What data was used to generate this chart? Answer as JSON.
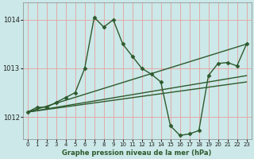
{
  "title": "Graphe pression niveau de la mer (hPa)",
  "bg_color": "#cce8e8",
  "plot_bg_color": "#cce8e8",
  "grid_color": "#e8a0a0",
  "line_color": "#2d5a2d",
  "marker_color": "#2d5a2d",
  "ylim": [
    1011.55,
    1014.35
  ],
  "yticks": [
    1012,
    1013,
    1014
  ],
  "xlim": [
    -0.5,
    23.5
  ],
  "xticks": [
    0,
    1,
    2,
    3,
    4,
    5,
    6,
    7,
    8,
    9,
    10,
    11,
    12,
    13,
    14,
    15,
    16,
    17,
    18,
    19,
    20,
    21,
    22,
    23
  ],
  "series": [
    {
      "x": [
        0,
        1,
        2,
        3,
        4,
        5,
        6,
        7,
        8,
        9,
        10,
        11,
        12,
        13,
        14,
        15,
        16,
        17,
        18,
        19,
        20,
        21,
        22,
        23
      ],
      "y": [
        1012.1,
        1012.2,
        1012.2,
        1012.3,
        1012.4,
        1012.5,
        1013.0,
        1014.05,
        1013.85,
        1014.0,
        1013.5,
        1013.25,
        1013.0,
        1012.88,
        1012.72,
        1011.82,
        1011.62,
        1011.65,
        1011.72,
        1012.85,
        1013.1,
        1013.12,
        1013.05,
        1013.5
      ],
      "has_markers": true
    },
    {
      "x": [
        0,
        23
      ],
      "y": [
        1012.1,
        1013.5
      ],
      "has_markers": false
    },
    {
      "x": [
        0,
        23
      ],
      "y": [
        1012.1,
        1012.85
      ],
      "has_markers": false
    },
    {
      "x": [
        0,
        23
      ],
      "y": [
        1012.1,
        1012.72
      ],
      "has_markers": false
    }
  ],
  "marker": "D",
  "markersize": 2.5,
  "linewidth": 1.0,
  "xlabel_fontsize": 6,
  "ytick_fontsize": 6,
  "xtick_fontsize": 5
}
